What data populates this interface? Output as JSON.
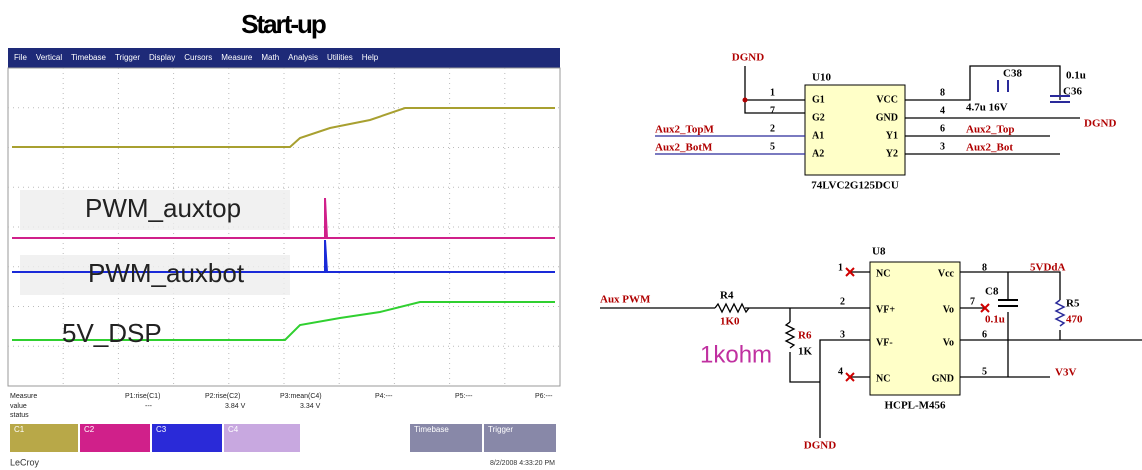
{
  "scope": {
    "title": "Start-up",
    "menu": [
      "File",
      "Vertical",
      "Timebase",
      "Trigger",
      "Display",
      "Cursors",
      "Measure",
      "Math",
      "Analysis",
      "Utilities",
      "Help"
    ],
    "trace_labels": [
      "PWM_auxtop",
      "PWM_auxbot",
      "5V_DSP"
    ],
    "measure": {
      "header": [
        "Measure",
        "P1:rise(C1)",
        "P2:rise(C2)",
        "P3:mean(C4)",
        "P4:---",
        "P5:---",
        "P6:---"
      ],
      "rows": [
        [
          "value",
          "---",
          "3.84 V",
          "3.34 V"
        ],
        [
          "status",
          "",
          "",
          ""
        ]
      ]
    },
    "channels": [
      "C1",
      "C2",
      "C3",
      "C4"
    ],
    "timebase": [
      "Timebase",
      "Trigger"
    ],
    "brand": "LeCroy",
    "date": "8/2/2008 4:33:20 PM"
  },
  "schematic_top": {
    "ref": "U10",
    "part": "74LVC2G125DCU",
    "ground": [
      "DGND",
      "DGND"
    ],
    "left_pins": [
      "1",
      "7",
      "2",
      "5"
    ],
    "left_names": [
      "G1",
      "G2",
      "A1",
      "A2"
    ],
    "right_pins": [
      "8",
      "4",
      "6",
      "3"
    ],
    "right_names": [
      "VCC",
      "GND",
      "Y1",
      "Y2"
    ],
    "left_nets": [
      "Aux2_TopM",
      "Aux2_BotM"
    ],
    "right_nets": [
      "Aux2_Top",
      "Aux2_Bot"
    ],
    "caps": [
      "C38",
      "C36"
    ],
    "cap_values": [
      "4.7u 16V",
      "0.1u"
    ]
  },
  "schematic_bottom": {
    "ref": "U8",
    "part": "HCPL-M456",
    "ground": "DGND",
    "left_pins": [
      "1",
      "2",
      "3",
      "4"
    ],
    "left_names": [
      "NC",
      "VF+",
      "VF-",
      "NC"
    ],
    "right_pins": [
      "8",
      "7",
      "6",
      "5"
    ],
    "right_names": [
      "Vcc",
      "Vo",
      "Vo",
      "GND"
    ],
    "input": "Aux PWM",
    "r4": [
      "R4",
      "1K0"
    ],
    "r6": [
      "R6",
      "1K"
    ],
    "note": "1kohm",
    "cap": [
      "C8",
      "0.1u"
    ],
    "r5": [
      "R5",
      "470"
    ],
    "supply": "5VDdA",
    "gnd_net": "V3V"
  }
}
